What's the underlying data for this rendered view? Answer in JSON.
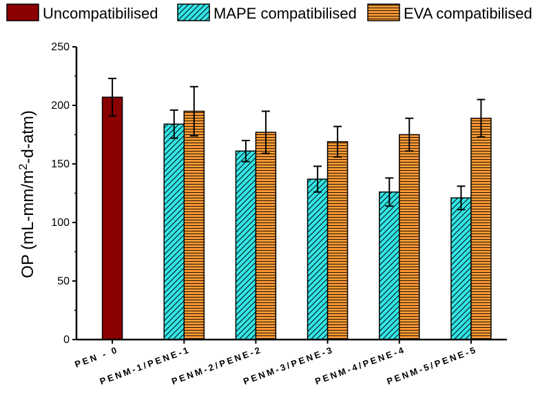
{
  "chart_data": {
    "type": "bar",
    "ylabel": {
      "base": "OP (mL-mm/m",
      "sup": "2",
      "tail": "-d-atm)"
    },
    "ylim": [
      0,
      250
    ],
    "yticks": [
      "0",
      "50",
      "100",
      "150",
      "200",
      "250"
    ],
    "categories": [
      "PEN - 0",
      "PENM-1/PENE-1",
      "PENM-2/PENE-2",
      "PENM-3/PENE-3",
      "PENM-4/PENE-4",
      "PENM-5/PENE-5"
    ],
    "series": [
      {
        "name": "Uncompatibilised",
        "color": "#8b0000",
        "pattern": "solid",
        "values": [
          207,
          null,
          null,
          null,
          null,
          null
        ],
        "errors": [
          16,
          null,
          null,
          null,
          null,
          null
        ]
      },
      {
        "name": "MAPE compatibilised",
        "color": "#33e6e6",
        "pattern": "diagonal-hatch",
        "values": [
          null,
          184,
          161,
          137,
          126,
          121
        ],
        "errors": [
          null,
          12,
          9,
          11,
          12,
          10
        ]
      },
      {
        "name": "EVA compatibilised",
        "color": "#ff9933",
        "pattern": "horizontal-lines",
        "values": [
          null,
          195,
          177,
          169,
          175,
          189
        ],
        "errors": [
          null,
          21,
          18,
          13,
          14,
          16
        ]
      }
    ],
    "legend": "top",
    "grid": false
  }
}
